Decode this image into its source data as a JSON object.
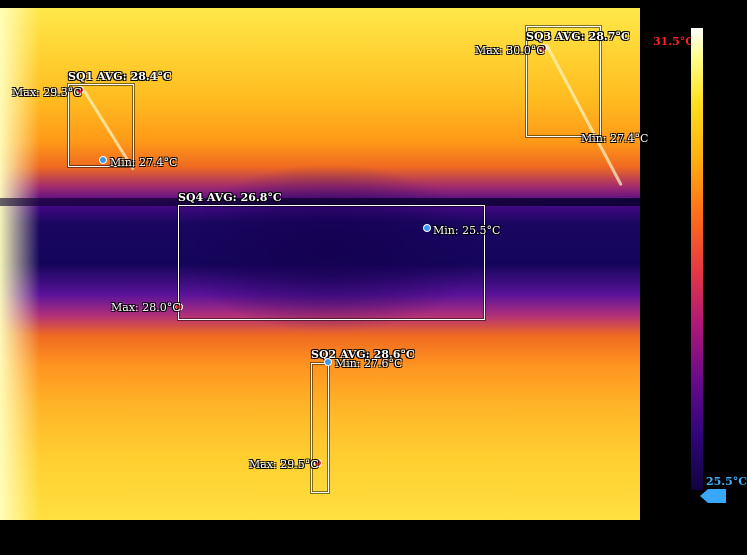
{
  "scale": {
    "max_label": "31.5°C",
    "min_label": "25.5°C",
    "max_color": "#ff2020",
    "min_color": "#40b0ff"
  },
  "regions": {
    "sq1": {
      "avg_label": "SQ1 AVG: 28.4°C",
      "max_label": "Max: 29.3°C",
      "min_label": "Min: 27.4°C"
    },
    "sq2": {
      "avg_label": "SQ2 AVG: 28.6°C",
      "max_label": "Max: 29.5°C",
      "min_label": "Min: 27.6°C"
    },
    "sq3": {
      "avg_label": "SQ3 AVG: 28.7°C",
      "max_label": "Max: 30.0°C",
      "min_label": "Min: 27.4°C"
    },
    "sq4": {
      "avg_label": "SQ4 AVG: 26.8°C",
      "max_label": "Max: 28.0°C",
      "min_label": "Min: 25.5°C"
    }
  },
  "icons": {
    "max_marker": "red-dot",
    "min_marker": "blue-dot",
    "scale_max_arrow": "red-flag-arrow",
    "scale_min_arrow": "blue-flag-arrow"
  }
}
